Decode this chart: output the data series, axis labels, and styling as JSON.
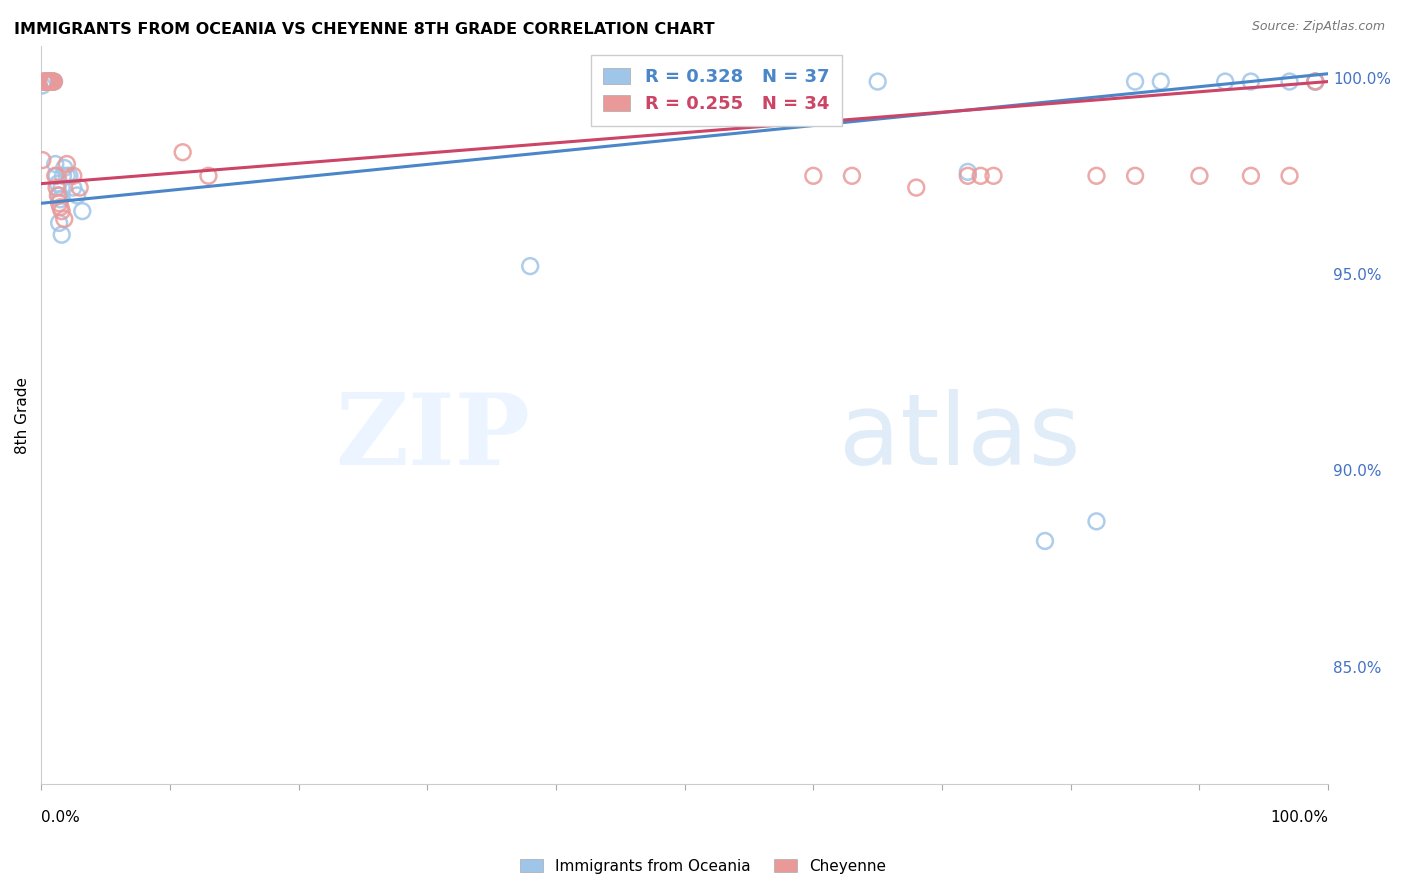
{
  "title": "IMMIGRANTS FROM OCEANIA VS CHEYENNE 8TH GRADE CORRELATION CHART",
  "source": "Source: ZipAtlas.com",
  "ylabel": "8th Grade",
  "watermark_zip": "ZIP",
  "watermark_atlas": "atlas",
  "blue_r": 0.328,
  "blue_n": 37,
  "pink_r": 0.255,
  "pink_n": 34,
  "blue_color": "#9fc5e8",
  "pink_color": "#ea9999",
  "blue_line_color": "#4a86c8",
  "pink_line_color": "#cc4466",
  "ytick_color": "#4472c4",
  "ytick_labels": [
    "100.0%",
    "95.0%",
    "90.0%",
    "85.0%"
  ],
  "ytick_values": [
    1.0,
    0.95,
    0.9,
    0.85
  ],
  "xlim": [
    0.0,
    1.0
  ],
  "ylim": [
    0.82,
    1.008
  ],
  "blue_points_x": [
    0.001,
    0.002,
    0.003,
    0.004,
    0.005,
    0.006,
    0.007,
    0.008,
    0.009,
    0.01,
    0.011,
    0.012,
    0.013,
    0.014,
    0.015,
    0.016,
    0.017,
    0.018,
    0.02,
    0.022,
    0.025,
    0.028,
    0.032,
    0.014,
    0.016,
    0.38,
    0.65,
    0.72,
    0.78,
    0.82,
    0.85,
    0.87,
    0.92,
    0.94,
    0.97,
    0.99,
    0.99
  ],
  "blue_points_y": [
    0.998,
    0.999,
    0.999,
    0.999,
    0.999,
    0.999,
    0.999,
    0.999,
    0.999,
    0.999,
    0.978,
    0.975,
    0.973,
    0.97,
    0.969,
    0.972,
    0.975,
    0.977,
    0.975,
    0.975,
    0.972,
    0.97,
    0.966,
    0.963,
    0.96,
    0.952,
    0.999,
    0.976,
    0.882,
    0.887,
    0.999,
    0.999,
    0.999,
    0.999,
    0.999,
    0.999,
    0.999
  ],
  "pink_points_x": [
    0.001,
    0.002,
    0.003,
    0.004,
    0.005,
    0.006,
    0.007,
    0.008,
    0.009,
    0.01,
    0.011,
    0.012,
    0.013,
    0.014,
    0.015,
    0.016,
    0.018,
    0.02,
    0.025,
    0.03,
    0.11,
    0.13,
    0.6,
    0.63,
    0.68,
    0.72,
    0.73,
    0.74,
    0.82,
    0.85,
    0.9,
    0.94,
    0.97,
    0.99
  ],
  "pink_points_y": [
    0.979,
    0.999,
    0.999,
    0.999,
    0.999,
    0.999,
    0.999,
    0.999,
    0.999,
    0.999,
    0.975,
    0.972,
    0.97,
    0.968,
    0.967,
    0.966,
    0.964,
    0.978,
    0.975,
    0.972,
    0.981,
    0.975,
    0.975,
    0.975,
    0.972,
    0.975,
    0.975,
    0.975,
    0.975,
    0.975,
    0.975,
    0.975,
    0.975,
    0.999
  ],
  "blue_line_x": [
    0.0,
    1.0
  ],
  "blue_line_y": [
    0.968,
    1.001
  ],
  "pink_line_x": [
    0.0,
    1.0
  ],
  "pink_line_y": [
    0.973,
    0.999
  ]
}
